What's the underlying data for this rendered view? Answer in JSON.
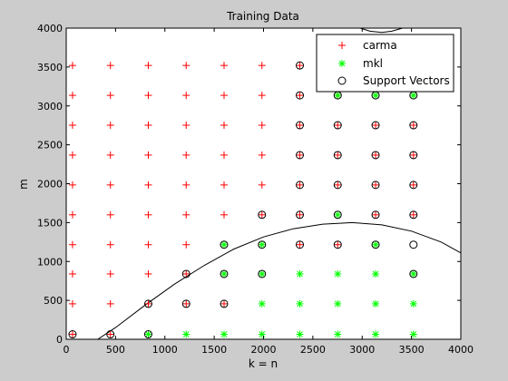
{
  "chart_data": {
    "type": "scatter",
    "title": "Training Data",
    "xlabel": "k = n",
    "ylabel": "m",
    "xlim": [
      0,
      4000
    ],
    "ylim": [
      0,
      4000
    ],
    "xticks": [
      0,
      500,
      1000,
      1500,
      2000,
      2500,
      3000,
      3500,
      4000
    ],
    "yticks": [
      0,
      500,
      1000,
      1500,
      2000,
      2500,
      3000,
      3500,
      4000
    ],
    "grid": false,
    "legend_position": "top-right",
    "colors": {
      "carma": "#ff0000",
      "mkl": "#00ff00",
      "sv": "#000000",
      "boundary": "#000000",
      "background": "#cccccc",
      "axes": "#ffffff"
    },
    "series": [
      {
        "name": "carma",
        "marker": "+",
        "points": [
          [
            64,
            456
          ],
          [
            64,
            840
          ],
          [
            64,
            1216
          ],
          [
            64,
            1600
          ],
          [
            64,
            1984
          ],
          [
            64,
            2368
          ],
          [
            64,
            2752
          ],
          [
            64,
            3136
          ],
          [
            64,
            3520
          ],
          [
            448,
            456
          ],
          [
            448,
            840
          ],
          [
            448,
            1216
          ],
          [
            448,
            1600
          ],
          [
            448,
            1984
          ],
          [
            448,
            2368
          ],
          [
            448,
            2752
          ],
          [
            448,
            3136
          ],
          [
            448,
            3520
          ],
          [
            832,
            456
          ],
          [
            832,
            840
          ],
          [
            832,
            1216
          ],
          [
            832,
            1600
          ],
          [
            832,
            1984
          ],
          [
            832,
            2368
          ],
          [
            832,
            2752
          ],
          [
            832,
            3136
          ],
          [
            832,
            3520
          ],
          [
            1216,
            456
          ],
          [
            1216,
            840
          ],
          [
            1216,
            1216
          ],
          [
            1216,
            1600
          ],
          [
            1216,
            1984
          ],
          [
            1216,
            2368
          ],
          [
            1216,
            2752
          ],
          [
            1216,
            3136
          ],
          [
            1216,
            3520
          ],
          [
            1600,
            456
          ],
          [
            1600,
            1600
          ],
          [
            1600,
            1984
          ],
          [
            1600,
            2368
          ],
          [
            1600,
            2752
          ],
          [
            1600,
            3136
          ],
          [
            1600,
            3520
          ],
          [
            1984,
            1600
          ],
          [
            1984,
            1984
          ],
          [
            1984,
            2368
          ],
          [
            1984,
            2752
          ],
          [
            1984,
            3136
          ],
          [
            1984,
            3520
          ],
          [
            2368,
            1216
          ],
          [
            2368,
            1600
          ],
          [
            2368,
            1984
          ],
          [
            2368,
            2368
          ],
          [
            2368,
            2752
          ],
          [
            2368,
            3136
          ],
          [
            2368,
            3520
          ],
          [
            2752,
            1216
          ],
          [
            2752,
            1984
          ],
          [
            2752,
            2368
          ],
          [
            2752,
            2752
          ],
          [
            2752,
            3136
          ],
          [
            3136,
            1600
          ],
          [
            3136,
            1984
          ],
          [
            3136,
            2368
          ],
          [
            3136,
            2752
          ],
          [
            3520,
            1600
          ],
          [
            3520,
            1984
          ],
          [
            3520,
            2368
          ],
          [
            3520,
            2752
          ],
          [
            64,
            64
          ],
          [
            448,
            64
          ]
        ]
      },
      {
        "name": "mkl",
        "marker": "*",
        "points": [
          [
            832,
            64
          ],
          [
            1216,
            64
          ],
          [
            1600,
            64
          ],
          [
            1984,
            64
          ],
          [
            2368,
            64
          ],
          [
            2752,
            64
          ],
          [
            3136,
            64
          ],
          [
            3520,
            64
          ],
          [
            1984,
            456
          ],
          [
            2368,
            456
          ],
          [
            2752,
            456
          ],
          [
            3136,
            456
          ],
          [
            3520,
            456
          ],
          [
            1600,
            840
          ],
          [
            1984,
            840
          ],
          [
            2368,
            840
          ],
          [
            2752,
            840
          ],
          [
            3136,
            840
          ],
          [
            3520,
            840
          ],
          [
            1600,
            1216
          ],
          [
            1984,
            1216
          ],
          [
            3136,
            1216
          ],
          [
            2752,
            1600
          ],
          [
            2752,
            3136
          ],
          [
            3136,
            3136
          ],
          [
            3520,
            3136
          ]
        ]
      },
      {
        "name": "Support Vectors",
        "marker": "o",
        "points": [
          [
            64,
            64
          ],
          [
            448,
            64
          ],
          [
            832,
            64
          ],
          [
            832,
            456
          ],
          [
            1216,
            456
          ],
          [
            1600,
            456
          ],
          [
            1216,
            840
          ],
          [
            1600,
            840
          ],
          [
            1984,
            840
          ],
          [
            3520,
            840
          ],
          [
            1600,
            1216
          ],
          [
            1984,
            1216
          ],
          [
            2368,
            1216
          ],
          [
            2752,
            1216
          ],
          [
            3136,
            1216
          ],
          [
            3520,
            1216
          ],
          [
            1984,
            1600
          ],
          [
            2368,
            1600
          ],
          [
            2752,
            1600
          ],
          [
            3136,
            1600
          ],
          [
            3520,
            1600
          ],
          [
            2368,
            1984
          ],
          [
            2752,
            1984
          ],
          [
            3136,
            1984
          ],
          [
            3520,
            1984
          ],
          [
            2368,
            2368
          ],
          [
            2752,
            2368
          ],
          [
            3136,
            2368
          ],
          [
            3520,
            2368
          ],
          [
            2368,
            2752
          ],
          [
            2752,
            2752
          ],
          [
            3136,
            2752
          ],
          [
            3520,
            2752
          ],
          [
            2368,
            3136
          ],
          [
            2752,
            3136
          ],
          [
            3136,
            3136
          ],
          [
            3520,
            3136
          ],
          [
            2368,
            3520
          ]
        ]
      }
    ],
    "boundary_curves": [
      [
        [
          320,
          0
        ],
        [
          500,
          150
        ],
        [
          800,
          440
        ],
        [
          1100,
          710
        ],
        [
          1400,
          950
        ],
        [
          1700,
          1160
        ],
        [
          2000,
          1315
        ],
        [
          2300,
          1420
        ],
        [
          2600,
          1480
        ],
        [
          2900,
          1500
        ],
        [
          3200,
          1470
        ],
        [
          3500,
          1390
        ],
        [
          3800,
          1250
        ],
        [
          4000,
          1110
        ]
      ],
      [
        [
          2980,
          4000
        ],
        [
          3080,
          3960
        ],
        [
          3200,
          3945
        ],
        [
          3300,
          3960
        ],
        [
          3410,
          4000
        ]
      ]
    ]
  }
}
